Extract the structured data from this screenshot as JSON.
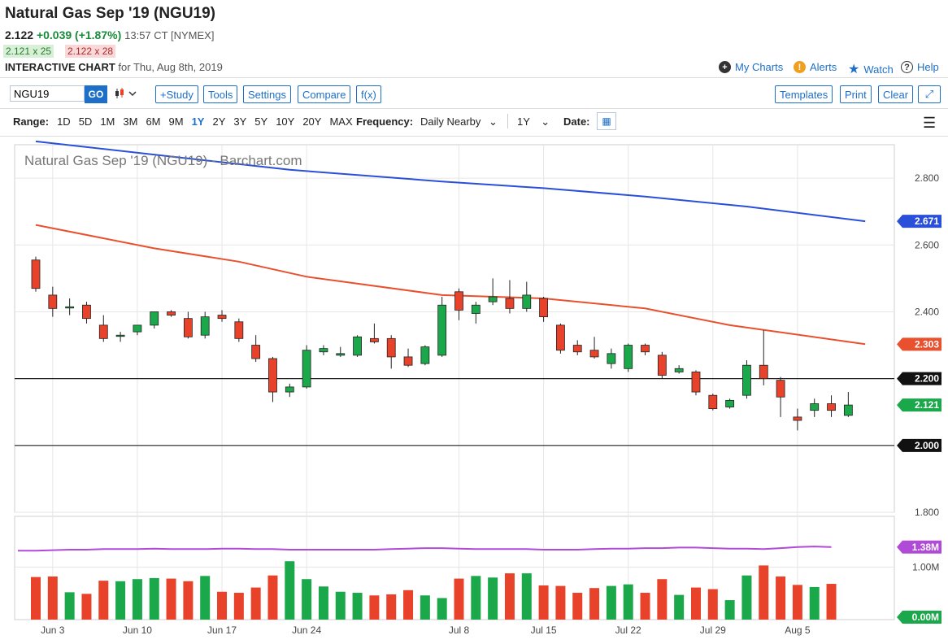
{
  "header": {
    "title": "Natural Gas Sep '19 (NGU19)",
    "last": "2.122",
    "change": "+0.039 (+1.87%)",
    "time": "13:57 CT [NYMEX]",
    "bid": "2.121 x 25",
    "ask": "2.122 x 28",
    "chart_label": "INTERACTIVE CHART",
    "chart_date": "for Thu, Aug 8th, 2019"
  },
  "top_links": {
    "my_charts": "My Charts",
    "alerts": "Alerts",
    "watch": "Watch",
    "help": "Help"
  },
  "toolbar": {
    "symbol": "NGU19",
    "go": "GO",
    "study": "+Study",
    "tools": "Tools",
    "settings": "Settings",
    "compare": "Compare",
    "fx": "f(x)",
    "templates": "Templates",
    "print": "Print",
    "clear": "Clear"
  },
  "range_bar": {
    "label": "Range:",
    "options": [
      "1D",
      "5D",
      "1M",
      "3M",
      "6M",
      "9M",
      "1Y",
      "2Y",
      "3Y",
      "5Y",
      "10Y",
      "20Y",
      "MAX"
    ],
    "active": "1Y",
    "frequency_label": "Frequency:",
    "frequency_value": "Daily Nearby",
    "period_value": "1Y",
    "date_label": "Date:"
  },
  "colors": {
    "up": "#1aa84a",
    "down": "#e8432a",
    "ma_long": "#2a4fd8",
    "ma_short": "#e8502e",
    "volume_ma": "#b24ad8",
    "accent": "#1e6fc8"
  },
  "chart_data": {
    "type": "candlestick",
    "title": "Natural Gas Sep '19 (NGU19) - Barchart.com",
    "y_ticks": [
      "2.800",
      "2.600",
      "2.400",
      "2.200",
      "2.000",
      "1.800"
    ],
    "y_range": [
      1.8,
      2.9
    ],
    "x_ticks": [
      "Jun 3",
      "Jun 10",
      "Jun 17",
      "Jun 24",
      "Jul 8",
      "Jul 15",
      "Jul 22",
      "Jul 29",
      "Aug 5"
    ],
    "x_tick_bar_index": [
      1,
      6,
      11,
      16,
      25,
      30,
      35,
      40,
      45
    ],
    "horizontal_lines": [
      2.2,
      2.0
    ],
    "last_labels": [
      {
        "value": "2.671",
        "series": "ma_long"
      },
      {
        "value": "2.303",
        "series": "ma_short"
      },
      {
        "value": "2.200",
        "series": "line"
      },
      {
        "value": "2.121",
        "series": "last"
      },
      {
        "value": "2.000",
        "series": "line"
      }
    ],
    "ohlc": [
      [
        2.555,
        2.565,
        2.46,
        2.47
      ],
      [
        2.45,
        2.475,
        2.385,
        2.41
      ],
      [
        2.415,
        2.44,
        2.39,
        2.415
      ],
      [
        2.42,
        2.43,
        2.365,
        2.38
      ],
      [
        2.36,
        2.39,
        2.31,
        2.32
      ],
      [
        2.33,
        2.34,
        2.31,
        2.33
      ],
      [
        2.34,
        2.36,
        2.33,
        2.36
      ],
      [
        2.36,
        2.4,
        2.35,
        2.4
      ],
      [
        2.4,
        2.405,
        2.385,
        2.39
      ],
      [
        2.38,
        2.4,
        2.32,
        2.325
      ],
      [
        2.33,
        2.4,
        2.32,
        2.385
      ],
      [
        2.39,
        2.405,
        2.37,
        2.38
      ],
      [
        2.37,
        2.38,
        2.31,
        2.32
      ],
      [
        2.3,
        2.33,
        2.25,
        2.26
      ],
      [
        2.26,
        2.265,
        2.13,
        2.16
      ],
      [
        2.16,
        2.185,
        2.145,
        2.175
      ],
      [
        2.175,
        2.3,
        2.17,
        2.285
      ],
      [
        2.28,
        2.3,
        2.27,
        2.29
      ],
      [
        2.27,
        2.295,
        2.265,
        2.275
      ],
      [
        2.27,
        2.33,
        2.265,
        2.325
      ],
      [
        2.32,
        2.365,
        2.305,
        2.31
      ],
      [
        2.32,
        2.33,
        2.23,
        2.265
      ],
      [
        2.265,
        2.29,
        2.235,
        2.24
      ],
      [
        2.245,
        2.3,
        2.24,
        2.295
      ],
      [
        2.27,
        2.445,
        2.265,
        2.42
      ],
      [
        2.46,
        2.47,
        2.375,
        2.405
      ],
      [
        2.395,
        2.43,
        2.365,
        2.42
      ],
      [
        2.43,
        2.5,
        2.42,
        2.445
      ],
      [
        2.44,
        2.495,
        2.395,
        2.41
      ],
      [
        2.41,
        2.49,
        2.4,
        2.45
      ],
      [
        2.44,
        2.445,
        2.37,
        2.385
      ],
      [
        2.36,
        2.365,
        2.275,
        2.285
      ],
      [
        2.3,
        2.315,
        2.27,
        2.28
      ],
      [
        2.285,
        2.325,
        2.26,
        2.265
      ],
      [
        2.245,
        2.29,
        2.23,
        2.275
      ],
      [
        2.23,
        2.305,
        2.22,
        2.3
      ],
      [
        2.3,
        2.305,
        2.27,
        2.28
      ],
      [
        2.27,
        2.28,
        2.2,
        2.21
      ],
      [
        2.22,
        2.24,
        2.215,
        2.23
      ],
      [
        2.22,
        2.225,
        2.15,
        2.16
      ],
      [
        2.15,
        2.155,
        2.105,
        2.11
      ],
      [
        2.115,
        2.14,
        2.11,
        2.135
      ],
      [
        2.15,
        2.255,
        2.14,
        2.24
      ],
      [
        2.24,
        2.345,
        2.18,
        2.2
      ],
      [
        2.195,
        2.205,
        2.085,
        2.145
      ],
      [
        2.085,
        2.11,
        2.045,
        2.075
      ],
      [
        2.105,
        2.14,
        2.085,
        2.125
      ],
      [
        2.125,
        2.15,
        2.085,
        2.105
      ],
      [
        2.09,
        2.16,
        2.085,
        2.121
      ]
    ],
    "ma_long": [
      [
        0,
        2.91
      ],
      [
        15,
        2.825
      ],
      [
        24,
        2.79
      ],
      [
        30,
        2.77
      ],
      [
        36,
        2.745
      ],
      [
        42,
        2.715
      ],
      [
        49,
        2.671
      ]
    ],
    "ma_short": [
      [
        0,
        2.66
      ],
      [
        7,
        2.59
      ],
      [
        12,
        2.55
      ],
      [
        16,
        2.505
      ],
      [
        24,
        2.45
      ],
      [
        30,
        2.44
      ],
      [
        36,
        2.41
      ],
      [
        41,
        2.36
      ],
      [
        49,
        2.303
      ]
    ],
    "volume": {
      "y_ticks": [
        "1.38M",
        "1.00M",
        "0.00M"
      ],
      "ma_value": 1.38,
      "ma_label": "1.38M",
      "max": 1.5,
      "values": [
        0.81,
        0.82,
        0.52,
        0.49,
        0.74,
        0.73,
        0.77,
        0.79,
        0.78,
        0.73,
        0.83,
        0.53,
        0.51,
        0.61,
        0.84,
        1.11,
        0.77,
        0.63,
        0.53,
        0.51,
        0.46,
        0.48,
        0.56,
        0.46,
        0.41,
        0.78,
        0.83,
        0.8,
        0.88,
        0.88,
        0.65,
        0.64,
        0.51,
        0.6,
        0.64,
        0.67,
        0.51,
        0.77,
        0.47,
        0.61,
        0.58,
        0.37,
        0.84,
        1.03,
        0.82,
        0.66,
        0.62,
        0.68,
        0.0
      ],
      "volume_ma": [
        1.31,
        1.32,
        1.33,
        1.33,
        1.34,
        1.34,
        1.34,
        1.35,
        1.34,
        1.34,
        1.34,
        1.35,
        1.35,
        1.34,
        1.34,
        1.33,
        1.33,
        1.33,
        1.33,
        1.33,
        1.33,
        1.34,
        1.35,
        1.36,
        1.36,
        1.35,
        1.34,
        1.34,
        1.34,
        1.34,
        1.33,
        1.33,
        1.33,
        1.34,
        1.35,
        1.35,
        1.36,
        1.36,
        1.37,
        1.37,
        1.36,
        1.35,
        1.35,
        1.34,
        1.36,
        1.38,
        1.39,
        1.38
      ]
    }
  }
}
